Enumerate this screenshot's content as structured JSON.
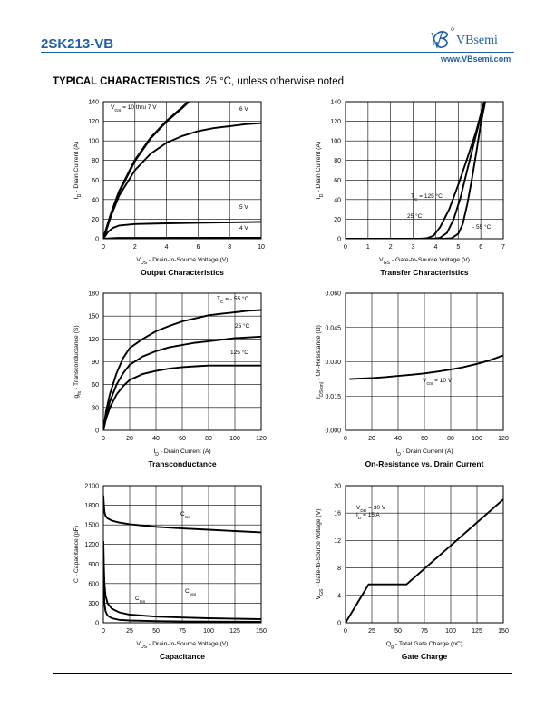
{
  "header": {
    "part_number": "2SK213-VB",
    "brand": "VBsemi",
    "website": "www.VBsemi.com"
  },
  "section": {
    "title": "TYPICAL CHARACTERISTICS",
    "subtitle": "25 °C, unless otherwise noted"
  },
  "chart_data": [
    {
      "type": "line",
      "title": "Output Characteristics",
      "xlabel": "V_DS - Drain-to-Source Voltage (V)",
      "ylabel": "I_D - Drain Current (A)",
      "xlim": [
        0,
        10
      ],
      "ylim": [
        0,
        140
      ],
      "xticks": [
        0,
        2,
        4,
        6,
        8,
        10
      ],
      "yticks": [
        0,
        20,
        40,
        60,
        80,
        100,
        120,
        140
      ],
      "grid": true,
      "series": [
        {
          "name": "V_GS = 10 thru 7 V",
          "x": [
            0,
            0.5,
            1,
            2,
            3,
            4,
            5,
            5.4
          ],
          "y": [
            0,
            26,
            48,
            80,
            103,
            120,
            134,
            140
          ]
        },
        {
          "name": "6 V",
          "x": [
            0,
            0.5,
            1,
            2,
            3,
            4,
            5,
            6,
            7,
            8,
            9,
            10
          ],
          "y": [
            0,
            24,
            44,
            70,
            87,
            98,
            105,
            110,
            113,
            115,
            117,
            118
          ]
        },
        {
          "name": "5 V",
          "x": [
            0,
            0.3,
            0.6,
            1,
            2,
            4,
            6,
            8,
            10
          ],
          "y": [
            0,
            7,
            11,
            13.5,
            15,
            15.8,
            16.3,
            16.8,
            17.2
          ]
        },
        {
          "name": "4 V",
          "x": [
            0,
            0.5,
            1,
            10
          ],
          "y": [
            0,
            0.6,
            0.8,
            1
          ]
        }
      ]
    },
    {
      "type": "line",
      "title": "Transfer Characteristics",
      "xlabel": "V_GS - Gate-to-Source Voltage (V)",
      "ylabel": "I_D - Drain Current (A)",
      "xlim": [
        0,
        7
      ],
      "ylim": [
        0,
        140
      ],
      "xticks": [
        0,
        1,
        2,
        3,
        4,
        5,
        6,
        7
      ],
      "yticks": [
        0,
        20,
        40,
        60,
        80,
        100,
        120,
        140
      ],
      "grid": true,
      "series": [
        {
          "name": "T_C = 125 °C",
          "x": [
            0,
            3.3,
            3.6,
            3.9,
            4.2,
            4.6,
            5.0,
            5.4,
            5.8,
            6.15
          ],
          "y": [
            0,
            0,
            0.5,
            3,
            12,
            30,
            55,
            82,
            110,
            140
          ]
        },
        {
          "name": "25 °C",
          "x": [
            0,
            3.9,
            4.2,
            4.5,
            4.8,
            5.1,
            5.4,
            5.7,
            6.0,
            6.2
          ],
          "y": [
            0,
            0,
            1,
            6,
            20,
            42,
            70,
            98,
            125,
            140
          ]
        },
        {
          "name": "- 55 °C",
          "x": [
            0,
            4.4,
            4.7,
            5.0,
            5.2,
            5.4,
            5.6,
            5.8,
            6.0,
            6.2
          ],
          "y": [
            0,
            0,
            0.5,
            5,
            15,
            35,
            60,
            88,
            117,
            140
          ]
        }
      ]
    },
    {
      "type": "line",
      "title": "Transconductance",
      "xlabel": "I_D - Drain Current (A)",
      "ylabel": "g_fs - Transconductance (S)",
      "xlim": [
        0,
        120
      ],
      "ylim": [
        0,
        180
      ],
      "xticks": [
        0,
        20,
        40,
        60,
        80,
        100,
        120
      ],
      "yticks": [
        0,
        30,
        60,
        90,
        120,
        150,
        180
      ],
      "grid": true,
      "series": [
        {
          "name": "T_C = - 55 °C",
          "x": [
            0,
            2,
            5,
            10,
            15,
            20,
            30,
            40,
            50,
            60,
            70,
            80,
            90,
            100,
            110,
            120
          ],
          "y": [
            0,
            25,
            48,
            75,
            95,
            108,
            120,
            130,
            137,
            143,
            147,
            151,
            153,
            155,
            157,
            158
          ]
        },
        {
          "name": "25 °C",
          "x": [
            0,
            2,
            5,
            10,
            15,
            20,
            30,
            40,
            50,
            60,
            70,
            80,
            90,
            100,
            110,
            120
          ],
          "y": [
            0,
            20,
            38,
            60,
            75,
            86,
            97,
            104,
            109,
            112,
            115,
            117,
            119,
            121,
            122,
            123
          ]
        },
        {
          "name": "125 °C",
          "x": [
            0,
            2,
            5,
            10,
            15,
            20,
            30,
            40,
            50,
            60,
            70,
            80,
            90,
            100,
            110,
            120
          ],
          "y": [
            0,
            15,
            30,
            47,
            58,
            66,
            74,
            78,
            81,
            83,
            84,
            85,
            85,
            85,
            85,
            85
          ]
        }
      ]
    },
    {
      "type": "line",
      "title": "On-Resistance vs. Drain Current",
      "xlabel": "I_D - Drain Current (A)",
      "ylabel": "r_DS(on) - On-Resistance (Ω)",
      "xlim": [
        0,
        120
      ],
      "ylim": [
        0,
        0.06
      ],
      "xticks": [
        0,
        20,
        40,
        60,
        80,
        100,
        120
      ],
      "yticks": [
        "0.000",
        "0.015",
        "0.030",
        "0.045",
        "0.060"
      ],
      "grid": true,
      "series": [
        {
          "name": "V_GS = 10 V",
          "x": [
            3,
            10,
            20,
            30,
            40,
            50,
            60,
            70,
            80,
            90,
            100,
            110,
            120
          ],
          "y": [
            0.0224,
            0.0226,
            0.0229,
            0.0233,
            0.0238,
            0.0243,
            0.0249,
            0.0257,
            0.0266,
            0.0277,
            0.0291,
            0.0307,
            0.0328
          ]
        }
      ]
    },
    {
      "type": "line",
      "title": "Capacitance",
      "xlabel": "V_DS - Drain-to-Source Voltage (V)",
      "ylabel": "C - Capacitance (pF)",
      "xlim": [
        0,
        150
      ],
      "ylim": [
        0,
        2100
      ],
      "xticks": [
        0,
        25,
        50,
        75,
        100,
        125,
        150
      ],
      "yticks": [
        0,
        300,
        600,
        900,
        1200,
        1500,
        1800,
        2100
      ],
      "grid": true,
      "series": [
        {
          "name": "C_iss",
          "x": [
            0,
            0.5,
            1,
            2,
            4,
            8,
            15,
            25,
            50,
            75,
            100,
            125,
            150
          ],
          "y": [
            1950,
            1800,
            1700,
            1640,
            1600,
            1565,
            1535,
            1510,
            1470,
            1445,
            1425,
            1405,
            1385
          ]
        },
        {
          "name": "C_oss",
          "x": [
            0,
            0.5,
            1,
            2,
            4,
            8,
            15,
            25,
            50,
            75,
            100,
            125,
            150
          ],
          "y": [
            1250,
            850,
            600,
            420,
            300,
            215,
            160,
            125,
            95,
            80,
            70,
            62,
            56
          ]
        },
        {
          "name": "C_rss",
          "x": [
            0,
            0.5,
            1,
            2,
            4,
            8,
            15,
            25,
            50,
            75,
            100,
            125,
            150
          ],
          "y": [
            900,
            500,
            300,
            180,
            110,
            70,
            45,
            35,
            25,
            20,
            18,
            16,
            15
          ]
        }
      ]
    },
    {
      "type": "line",
      "title": "Gate Charge",
      "xlabel": "Q_g - Total Gate Charge (nC)",
      "ylabel": "V_GS - Gate-to-Source Voltage (V)",
      "xlim": [
        0,
        150
      ],
      "ylim": [
        0,
        20
      ],
      "xticks": [
        0,
        25,
        50,
        75,
        100,
        125,
        150
      ],
      "yticks": [
        0,
        4,
        8,
        12,
        16,
        20
      ],
      "grid": true,
      "annotations": [
        "V_DD = 30 V",
        "I_D = 15 A"
      ],
      "series": [
        {
          "x": [
            0,
            22,
            58,
            150
          ],
          "y": [
            0,
            5.6,
            5.6,
            18
          ]
        }
      ]
    }
  ]
}
